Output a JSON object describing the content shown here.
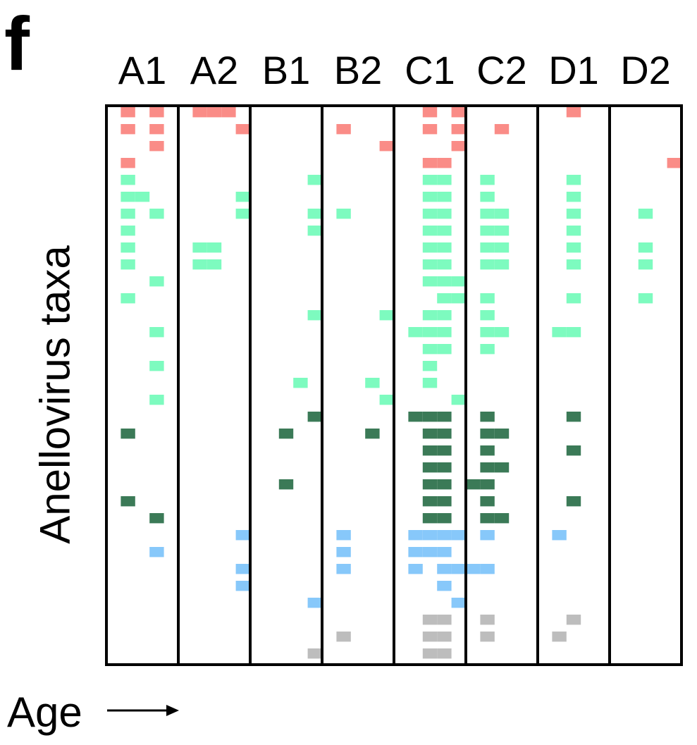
{
  "panel": {
    "letter": "f"
  },
  "chart_data": {
    "type": "heatmap",
    "ylabel": "Anellovirus taxa",
    "xlabel": "Age",
    "subjects": [
      "A1",
      "A2",
      "B1",
      "B2",
      "C1",
      "C2",
      "D1",
      "D2"
    ],
    "timepoints_per_subject": 5,
    "n_taxa": 33,
    "group_colors": {
      "pink": "#fa8c87",
      "lightgreen": "#7dfbbf",
      "darkgreen": "#3b7a57",
      "blue": "#87c8fa",
      "gray": "#bdbdbd"
    },
    "groups": [
      {
        "name": "pink",
        "rows": [
          0,
          3
        ]
      },
      {
        "name": "lightgreen",
        "rows": [
          4,
          17
        ]
      },
      {
        "name": "darkgreen",
        "rows": [
          18,
          24
        ]
      },
      {
        "name": "blue",
        "rows": [
          25,
          29
        ]
      },
      {
        "name": "gray",
        "rows": [
          30,
          32
        ]
      }
    ],
    "presence": {
      "A1": [
        [
          0,
          1
        ],
        [
          0,
          3
        ],
        [
          1,
          1
        ],
        [
          1,
          3
        ],
        [
          2,
          3
        ],
        [
          3,
          1
        ],
        [
          4,
          1
        ],
        [
          5,
          1
        ],
        [
          5,
          2
        ],
        [
          6,
          1
        ],
        [
          6,
          3
        ],
        [
          7,
          1
        ],
        [
          8,
          1
        ],
        [
          9,
          1
        ],
        [
          10,
          3
        ],
        [
          11,
          1
        ],
        [
          13,
          3
        ],
        [
          15,
          3
        ],
        [
          17,
          3
        ],
        [
          19,
          1
        ],
        [
          23,
          1
        ],
        [
          24,
          3
        ],
        [
          26,
          3
        ]
      ],
      "A2": [
        [
          0,
          1
        ],
        [
          0,
          2
        ],
        [
          0,
          3
        ],
        [
          1,
          4
        ],
        [
          5,
          4
        ],
        [
          6,
          4
        ],
        [
          8,
          1
        ],
        [
          8,
          2
        ],
        [
          9,
          1
        ],
        [
          9,
          2
        ],
        [
          25,
          4
        ],
        [
          27,
          4
        ],
        [
          28,
          4
        ]
      ],
      "B1": [
        [
          4,
          4
        ],
        [
          6,
          4
        ],
        [
          7,
          4
        ],
        [
          12,
          4
        ],
        [
          16,
          3
        ],
        [
          18,
          4
        ],
        [
          19,
          2
        ],
        [
          22,
          2
        ],
        [
          29,
          4
        ],
        [
          32,
          4
        ]
      ],
      "B2": [
        [
          1,
          1
        ],
        [
          2,
          4
        ],
        [
          6,
          1
        ],
        [
          12,
          4
        ],
        [
          16,
          3
        ],
        [
          17,
          4
        ],
        [
          19,
          3
        ],
        [
          25,
          1
        ],
        [
          26,
          1
        ],
        [
          27,
          1
        ],
        [
          31,
          1
        ]
      ],
      "C1": [
        [
          0,
          2
        ],
        [
          0,
          4
        ],
        [
          1,
          2
        ],
        [
          1,
          4
        ],
        [
          2,
          4
        ],
        [
          3,
          2
        ],
        [
          3,
          3
        ],
        [
          4,
          2
        ],
        [
          4,
          3
        ],
        [
          5,
          2
        ],
        [
          5,
          3
        ],
        [
          6,
          2
        ],
        [
          6,
          3
        ],
        [
          7,
          2
        ],
        [
          7,
          3
        ],
        [
          8,
          2
        ],
        [
          8,
          3
        ],
        [
          9,
          2
        ],
        [
          9,
          3
        ],
        [
          10,
          2
        ],
        [
          10,
          3
        ],
        [
          10,
          4
        ],
        [
          11,
          3
        ],
        [
          11,
          4
        ],
        [
          12,
          2
        ],
        [
          12,
          3
        ],
        [
          13,
          1
        ],
        [
          13,
          2
        ],
        [
          13,
          3
        ],
        [
          14,
          2
        ],
        [
          14,
          3
        ],
        [
          15,
          2
        ],
        [
          16,
          2
        ],
        [
          17,
          4
        ],
        [
          18,
          1
        ],
        [
          18,
          2
        ],
        [
          18,
          3
        ],
        [
          19,
          2
        ],
        [
          19,
          3
        ],
        [
          20,
          2
        ],
        [
          20,
          3
        ],
        [
          21,
          2
        ],
        [
          21,
          3
        ],
        [
          22,
          2
        ],
        [
          22,
          3
        ],
        [
          23,
          2
        ],
        [
          23,
          3
        ],
        [
          24,
          2
        ],
        [
          24,
          3
        ],
        [
          25,
          1
        ],
        [
          25,
          2
        ],
        [
          25,
          3
        ],
        [
          25,
          4
        ],
        [
          26,
          1
        ],
        [
          26,
          2
        ],
        [
          26,
          3
        ],
        [
          27,
          1
        ],
        [
          27,
          3
        ],
        [
          27,
          4
        ],
        [
          28,
          3
        ],
        [
          29,
          4
        ],
        [
          30,
          2
        ],
        [
          30,
          3
        ],
        [
          31,
          2
        ],
        [
          31,
          3
        ],
        [
          32,
          2
        ],
        [
          32,
          3
        ]
      ],
      "C2": [
        [
          1,
          2
        ],
        [
          4,
          1
        ],
        [
          5,
          1
        ],
        [
          6,
          1
        ],
        [
          6,
          2
        ],
        [
          7,
          1
        ],
        [
          7,
          2
        ],
        [
          8,
          1
        ],
        [
          8,
          2
        ],
        [
          9,
          1
        ],
        [
          9,
          2
        ],
        [
          11,
          1
        ],
        [
          12,
          1
        ],
        [
          13,
          1
        ],
        [
          13,
          2
        ],
        [
          14,
          1
        ],
        [
          18,
          1
        ],
        [
          19,
          1
        ],
        [
          19,
          2
        ],
        [
          20,
          1
        ],
        [
          21,
          1
        ],
        [
          21,
          2
        ],
        [
          22,
          0
        ],
        [
          22,
          1
        ],
        [
          23,
          1
        ],
        [
          24,
          1
        ],
        [
          24,
          2
        ],
        [
          25,
          1
        ],
        [
          27,
          0
        ],
        [
          27,
          1
        ],
        [
          30,
          1
        ],
        [
          31,
          1
        ]
      ],
      "D1": [
        [
          0,
          2
        ],
        [
          4,
          2
        ],
        [
          5,
          2
        ],
        [
          6,
          2
        ],
        [
          7,
          2
        ],
        [
          8,
          2
        ],
        [
          9,
          2
        ],
        [
          11,
          2
        ],
        [
          13,
          1
        ],
        [
          13,
          2
        ],
        [
          18,
          2
        ],
        [
          20,
          2
        ],
        [
          23,
          2
        ],
        [
          25,
          1
        ],
        [
          30,
          2
        ],
        [
          31,
          1
        ]
      ],
      "D2": [
        [
          3,
          4
        ],
        [
          6,
          2
        ],
        [
          8,
          2
        ],
        [
          9,
          2
        ],
        [
          11,
          2
        ]
      ]
    }
  }
}
